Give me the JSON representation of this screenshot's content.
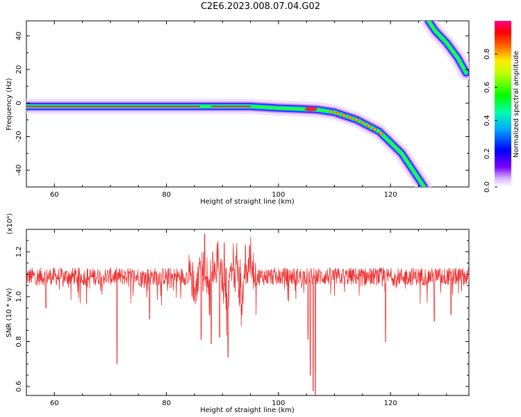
{
  "title": "C2E6.2023.008.07.04.G02",
  "colors": {
    "series": "#ee3333"
  },
  "chart_data": [
    {
      "type": "heatmap",
      "xlabel": "Height of straight line (km)",
      "ylabel": "Frequency (Hz)",
      "xlim": [
        55,
        134
      ],
      "ylim": [
        -50,
        49
      ],
      "xticks": [
        "60",
        "80",
        "100",
        "120"
      ],
      "yticks": [
        "-40",
        "-20",
        "0",
        "20",
        "40"
      ],
      "colorbar": {
        "label": "Normalized spectral amplitude",
        "range": [
          0,
          1
        ],
        "ticks": [
          "0.0",
          "0.2",
          "0.4",
          "0.6",
          "0.8"
        ],
        "colormap": "rainbow"
      },
      "ridges": [
        {
          "name": "",
          "points": [
            [
              55,
              -2
            ],
            [
              70,
              -2
            ],
            [
              86,
              -2
            ],
            [
              95,
              -2
            ],
            [
              100,
              -3
            ],
            [
              104,
              -3.5
            ],
            [
              107,
              -4
            ],
            [
              110,
              -5.5
            ],
            [
              114,
              -10
            ],
            [
              118,
              -17
            ],
            [
              122,
              -30
            ],
            [
              124,
              -40
            ],
            [
              126,
              -50
            ]
          ]
        },
        {
          "name": "",
          "points": [
            [
              126.8,
              49
            ],
            [
              128,
              43
            ],
            [
              130,
              36
            ],
            [
              132,
              27
            ],
            [
              133.5,
              18
            ]
          ]
        }
      ]
    },
    {
      "type": "line",
      "xlabel": "Height of straight line (km)",
      "ylabel": "SNR (10 * v/v)",
      "yscale_label": "(x10⁴)",
      "xlim": [
        55,
        134
      ],
      "ylim": [
        0.56,
        1.3
      ],
      "xticks": [
        "60",
        "80",
        "100",
        "120"
      ],
      "yticks": [
        "0.6",
        "0.8",
        "1.0",
        "1.2"
      ],
      "series": [
        {
          "name": "",
          "x_range": [
            55,
            134
          ],
          "baseline": 1.09,
          "dips": [
            [
              58.5,
              0.95
            ],
            [
              71.2,
              0.7
            ],
            [
              77,
              0.9
            ],
            [
              86.2,
              0.81
            ],
            [
              88,
              0.79
            ],
            [
              89.5,
              0.82
            ],
            [
              91,
              0.73
            ],
            [
              105.3,
              0.81
            ],
            [
              105.7,
              0.65
            ],
            [
              106.2,
              0.58
            ],
            [
              106.6,
              0.56
            ],
            [
              119.1,
              0.8
            ],
            [
              127.8,
              0.89
            ],
            [
              130.8,
              0.92
            ]
          ],
          "peaks": [
            [
              86.8,
              1.28
            ],
            [
              88.3,
              1.2
            ],
            [
              90.3,
              1.24
            ],
            [
              94.1,
              1.23
            ]
          ]
        }
      ]
    }
  ]
}
